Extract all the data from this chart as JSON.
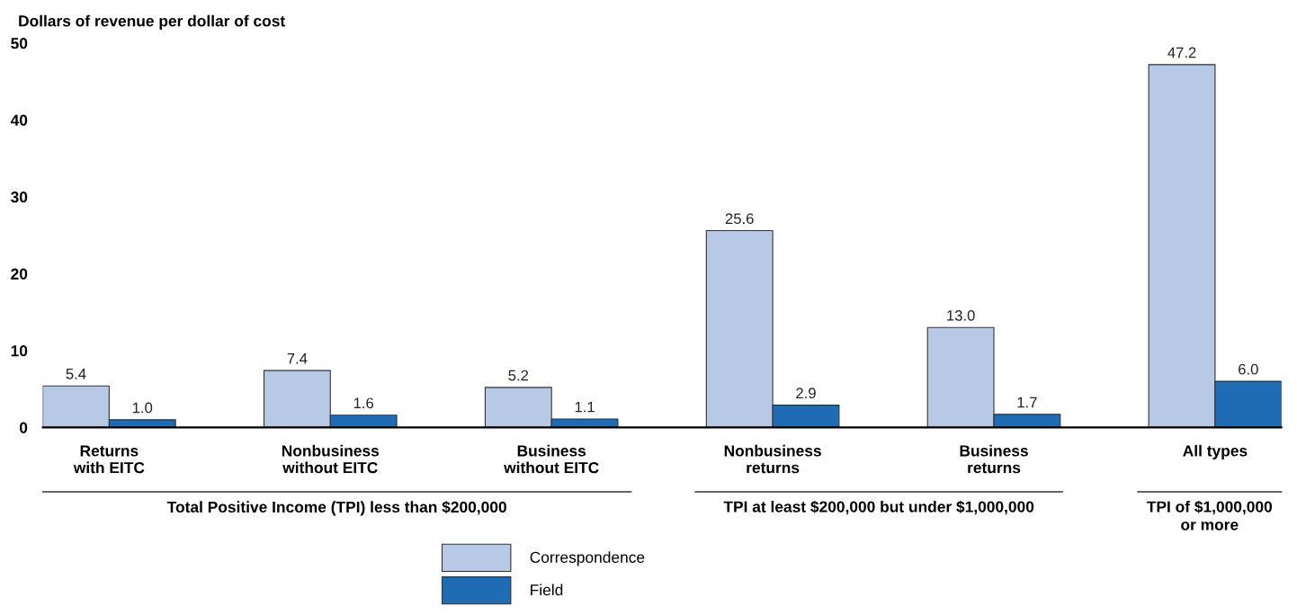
{
  "chart_data": {
    "type": "bar",
    "ylabel": "Dollars of revenue per dollar of cost",
    "categories": [
      "Returns\nwith EITC",
      "Nonbusiness\nwithout EITC",
      "Business\nwithout EITC",
      "Nonbusiness\nreturns",
      "Business\nreturns",
      "All types"
    ],
    "series": [
      {
        "name": "Correspondence",
        "color": "#b8c9e6",
        "values": [
          5.4,
          7.4,
          5.2,
          25.6,
          13,
          47.2
        ],
        "value_labels": [
          "5.4",
          "7.4",
          "5.2",
          "25.6",
          "13.0",
          "47.2"
        ]
      },
      {
        "name": "Field",
        "color": "#1f6cb4",
        "values": [
          1,
          1.6,
          1.1,
          2.9,
          1.7,
          6
        ],
        "value_labels": [
          "1.0",
          "1.6",
          "1.1",
          "2.9",
          "1.7",
          "6.0"
        ]
      }
    ],
    "ylim": [
      0,
      50
    ],
    "yticks": [
      0,
      10,
      20,
      30,
      40,
      50
    ],
    "grid": false,
    "legend": "bottom",
    "annotations": [
      "Total Positive Income (TPI) less than $200,000",
      "TPI at least $200,000 but under $1,000,000",
      "TPI of $1,000,000\nor more"
    ]
  }
}
